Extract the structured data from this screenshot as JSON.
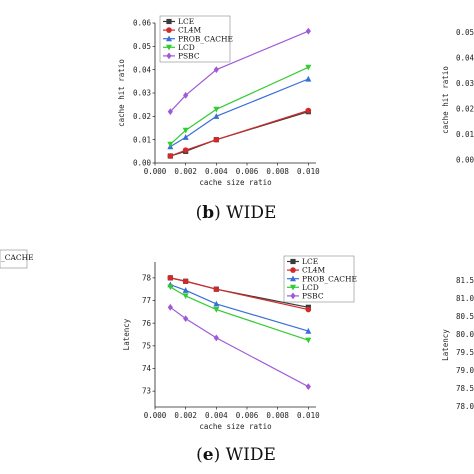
{
  "chart_data": [
    {
      "id": "b",
      "type": "line",
      "caption_letter": "b",
      "caption_text": " WIDE",
      "xlabel": "cache size ratio",
      "ylabel": "cache hit ratio",
      "x_ticks": [
        "0.000",
        "0.002",
        "0.004",
        "0.006",
        "0.008",
        "0.010"
      ],
      "y_ticks": [
        "0.00",
        "0.01",
        "0.02",
        "0.03",
        "0.04",
        "0.05",
        "0.06"
      ],
      "xlim": [
        0,
        0.0105
      ],
      "ylim": [
        0,
        0.06
      ],
      "legend_position": "top-left",
      "x": [
        0.001,
        0.002,
        0.004,
        0.01
      ],
      "series": [
        {
          "name": "LCE",
          "color": "#3a3a3a",
          "marker": "square",
          "values": [
            0.003,
            0.005,
            0.01,
            0.022
          ]
        },
        {
          "name": "CL4M",
          "color": "#d22a2a",
          "marker": "circle",
          "values": [
            0.003,
            0.0055,
            0.01,
            0.0225
          ]
        },
        {
          "name": "PROB_CACHE",
          "color": "#3a6fd8",
          "marker": "triangle",
          "values": [
            0.007,
            0.011,
            0.02,
            0.036
          ]
        },
        {
          "name": "LCD",
          "color": "#33cc33",
          "marker": "triangle-down",
          "values": [
            0.008,
            0.014,
            0.023,
            0.041
          ]
        },
        {
          "name": "PSBC",
          "color": "#a05ad8",
          "marker": "diamond",
          "values": [
            0.022,
            0.029,
            0.04,
            0.0565
          ]
        }
      ]
    },
    {
      "id": "e",
      "type": "line",
      "caption_letter": "e",
      "caption_text": " WIDE",
      "xlabel": "cache size ratio",
      "ylabel": "Latency",
      "x_ticks": [
        "0.000",
        "0.002",
        "0.004",
        "0.006",
        "0.008",
        "0.010"
      ],
      "y_ticks": [
        "73",
        "74",
        "75",
        "76",
        "77",
        "78"
      ],
      "xlim": [
        0,
        0.0105
      ],
      "ylim": [
        72.3,
        78.7
      ],
      "legend_position": "top-right",
      "x": [
        0.001,
        0.002,
        0.004,
        0.01
      ],
      "series": [
        {
          "name": "LCE",
          "color": "#3a3a3a",
          "marker": "square",
          "values": [
            78.0,
            77.85,
            77.5,
            76.7
          ]
        },
        {
          "name": "CL4M",
          "color": "#d22a2a",
          "marker": "circle",
          "values": [
            78.0,
            77.85,
            77.5,
            76.6
          ]
        },
        {
          "name": "PROB_CACHE",
          "color": "#3a6fd8",
          "marker": "triangle",
          "values": [
            77.7,
            77.45,
            76.85,
            75.65
          ]
        },
        {
          "name": "LCD",
          "color": "#33cc33",
          "marker": "triangle-down",
          "values": [
            77.6,
            77.2,
            76.6,
            75.25
          ]
        },
        {
          "name": "PSBC",
          "color": "#a05ad8",
          "marker": "diamond",
          "values": [
            76.7,
            76.2,
            75.35,
            73.2
          ]
        }
      ]
    }
  ],
  "edge_fragments": {
    "left_middle_legend_text": "_CACHE",
    "right_top_yticks": [
      "0.05",
      "0.04",
      "0.03",
      "0.02",
      "0.01",
      "0.00"
    ],
    "right_top_ylabel": "cache hit ratio",
    "right_bottom_yticks": [
      "81.5",
      "81.0",
      "80.5",
      "80.0",
      "79.5",
      "79.0",
      "78.5",
      "78.0"
    ],
    "right_bottom_ylabel": "Latency"
  }
}
